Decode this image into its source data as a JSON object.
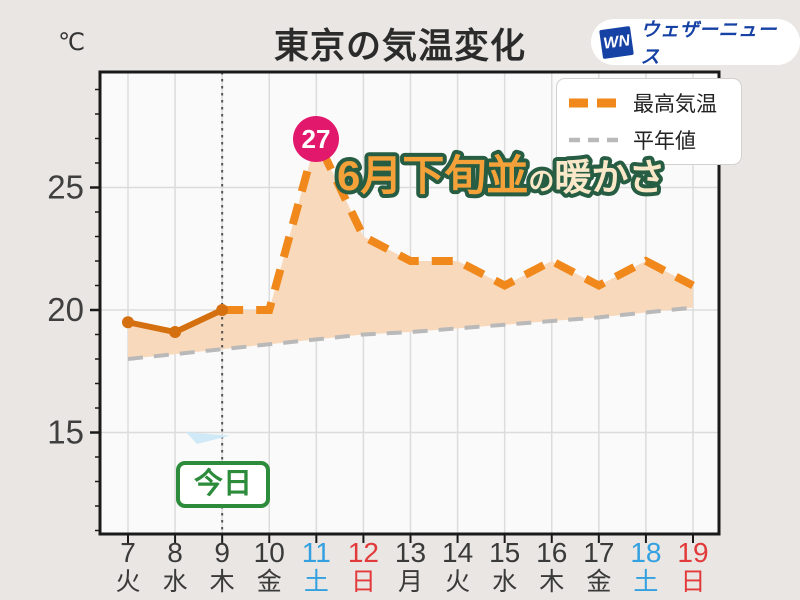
{
  "header": {
    "title": "東京の気温変化",
    "unit_label": "℃",
    "logo": {
      "mark": "WN",
      "text": "ウェザーニュース"
    }
  },
  "legend": {
    "max_temp_label": "最高気温",
    "normal_label": "平年値"
  },
  "annotation": {
    "peak_value": "27",
    "warmth_main": "6月下旬並",
    "warmth_particle": "の",
    "warmth_tail": "暖かさ",
    "today_label": "今日"
  },
  "chart_data": {
    "type": "line",
    "title": "東京の気温変化",
    "ylabel": "℃",
    "x": [
      "7",
      "8",
      "9",
      "10",
      "11",
      "12",
      "13",
      "14",
      "15",
      "16",
      "17",
      "18",
      "19"
    ],
    "x_weekdays": [
      "火",
      "水",
      "木",
      "金",
      "土",
      "日",
      "月",
      "火",
      "水",
      "木",
      "金",
      "土",
      "日"
    ],
    "x_label_colors": [
      "dark",
      "dark",
      "dark",
      "dark",
      "blue",
      "red",
      "dark",
      "dark",
      "dark",
      "dark",
      "dark",
      "blue",
      "red"
    ],
    "yticks": [
      15,
      20,
      25
    ],
    "ylim": [
      10.8,
      29.7
    ],
    "grid": true,
    "legend_position": "top-right",
    "today_index": 2,
    "series": [
      {
        "name": "最高気温",
        "values": [
          19.5,
          19.1,
          20,
          20,
          27,
          23,
          22,
          22,
          21,
          22,
          21,
          22,
          21
        ],
        "style": "solid-then-dashed",
        "solid_until_index": 2,
        "color_solid": "#d4700f",
        "color_dash": "#f0881c"
      },
      {
        "name": "平年値",
        "values": [
          18,
          18.2,
          18.4,
          18.6,
          18.8,
          19,
          19.1,
          19.25,
          19.4,
          19.55,
          19.7,
          19.9,
          20.1
        ],
        "style": "dashed",
        "color": "#b9b9b9"
      }
    ],
    "peak_annotation": {
      "x": "11",
      "value": 27,
      "label": "27"
    }
  },
  "colors": {
    "background": "#e9e6e3",
    "plot_bg": "#fbfafa",
    "border": "#1a1a1a",
    "grid": "#dcdcdc",
    "fill_peach": "#f9d9bc",
    "today_line": "#555555",
    "axis_text": "#3f3f3f",
    "weekday_dark": "#3a3a3a",
    "weekday_blue": "#33a0e0",
    "weekday_red": "#e23a3a",
    "badge_pink": "#e2186d",
    "today_green": "#2c8c3c",
    "anno_orange": "#f5a139",
    "anno_cream": "#fbe8c9",
    "anno_outline": "#265d43",
    "logo_blue": "#1641a5"
  }
}
